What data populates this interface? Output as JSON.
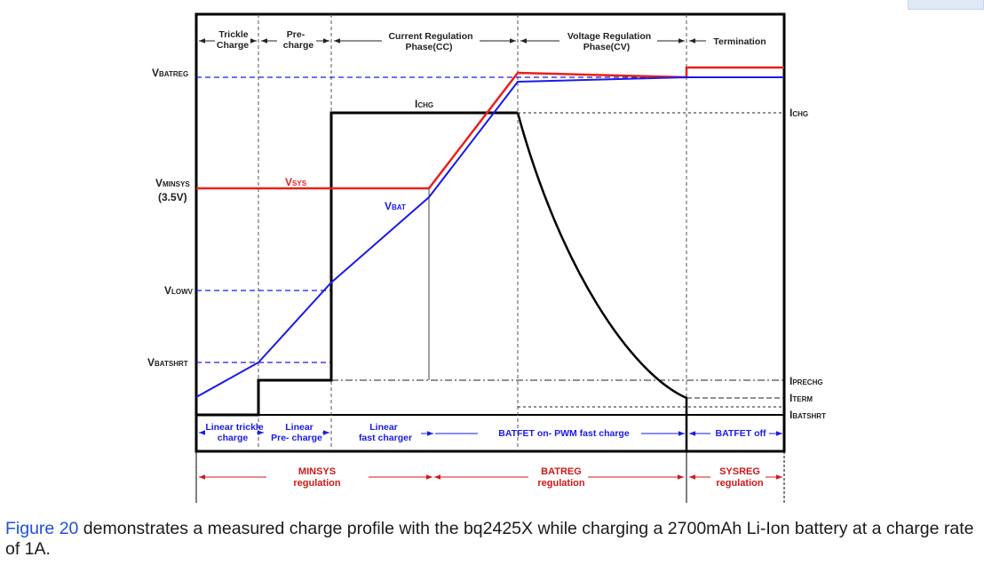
{
  "phases": {
    "trickle": [
      "Trickle",
      "Charge"
    ],
    "pre": [
      "Pre-",
      "charge"
    ],
    "cc": [
      "Current Regulation",
      "Phase(CC)"
    ],
    "cv": [
      "Voltage Regulation",
      "Phase(CV)"
    ],
    "termination": "Termination"
  },
  "y_labels": {
    "vbatreg": {
      "main": "V",
      "sub": "BATREG"
    },
    "vminsys": {
      "main": "V",
      "sub": "MINSYS"
    },
    "vminsys_value": "(3.5V)",
    "vlowv": {
      "main": "V",
      "sub": "LOWV"
    },
    "vbatshrt": {
      "main": "V",
      "sub": "BATSHRT"
    }
  },
  "curve_labels": {
    "vsys": {
      "main": "V",
      "sub": "SYS"
    },
    "vbat": {
      "main": "V",
      "sub": "BAT"
    },
    "ichg_top": {
      "main": "I",
      "sub": "CHG"
    }
  },
  "right_labels": {
    "ichg": {
      "main": "I",
      "sub": "CHG"
    },
    "iprechg": {
      "main": "I",
      "sub": "PRECHG"
    },
    "iterm": {
      "main": "I",
      "sub": "TERM"
    },
    "ibatshrt": {
      "main": "I",
      "sub": "BATSHRT"
    }
  },
  "modes": {
    "linear_trickle": [
      "Linear trickle",
      "charge"
    ],
    "linear_pre": [
      "Linear",
      "Pre- charge"
    ],
    "linear_fast": [
      "Linear",
      "fast charger"
    ],
    "pwm": "BATFET on-  PWM fast charge",
    "batfet_off": "BATFET off"
  },
  "regulation": {
    "minsys": [
      "MINSYS",
      "regulation"
    ],
    "batreg": [
      "BATREG",
      "regulation"
    ],
    "sysreg": [
      "SYSREG",
      "regulation"
    ]
  },
  "caption": {
    "ref": "Figure 20",
    "text": " demonstrates a measured charge profile with the bq2425X while charging a 2700mAh Li-Ion battery at a charge rate of 1A."
  },
  "colors": {
    "frame": "#000000",
    "vsys": "#e8201a",
    "vbat": "#1a1ae8",
    "ichg": "#000000",
    "mode_text": "#1a1ae8",
    "regulation_text": "#d01818"
  }
}
